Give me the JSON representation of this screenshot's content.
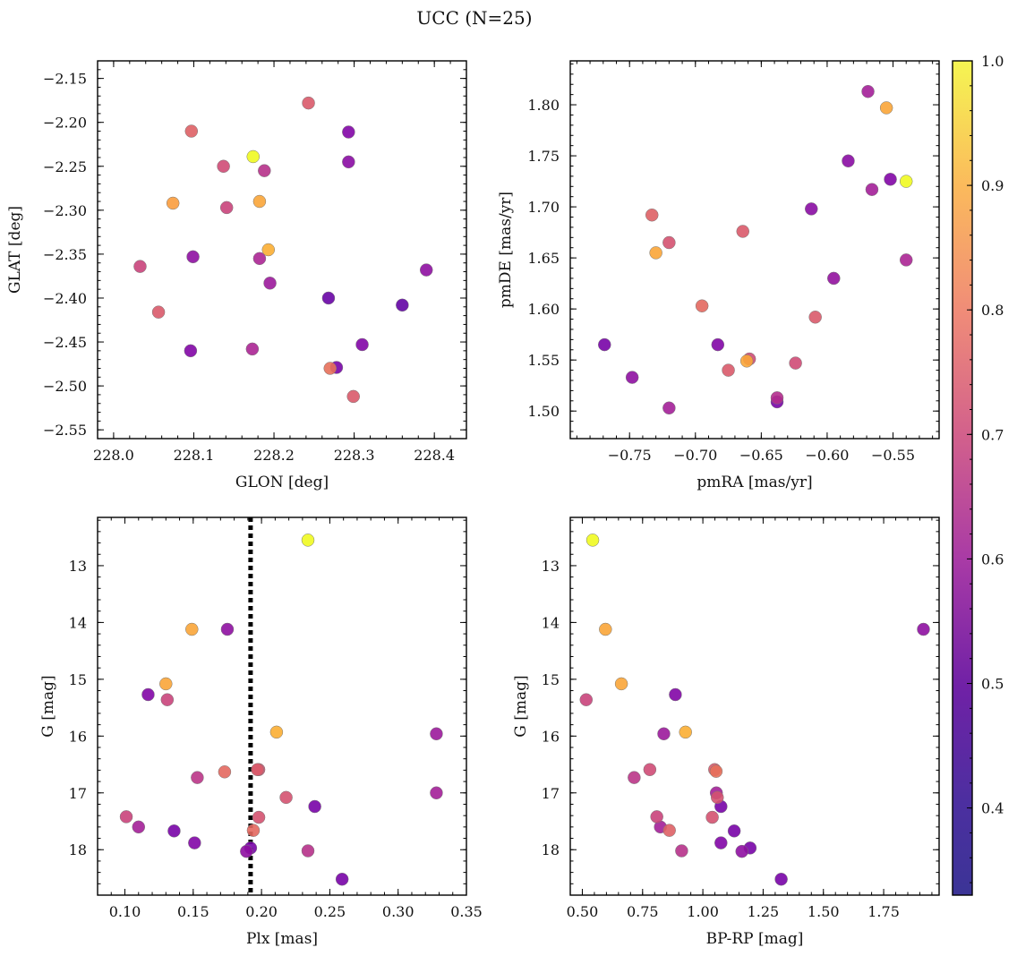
{
  "figure_title": "UCC (N=25)",
  "colors": {
    "colormap": "plasma",
    "vline": "#000000"
  },
  "colorbar": {
    "range": [
      0.33,
      1.0
    ],
    "ticks": [
      0.4,
      0.5,
      0.6,
      0.7,
      0.8,
      0.9,
      1.0
    ],
    "tick_labels": [
      "0.4",
      "0.5",
      "0.6",
      "0.7",
      "0.8",
      "0.9",
      "1.0"
    ]
  },
  "chart_data": [
    {
      "type": "scatter",
      "title": "",
      "xlabel": "GLON [deg]",
      "ylabel": "GLAT [deg]",
      "xlim": [
        227.98,
        228.44
      ],
      "ylim": [
        -2.56,
        -2.13
      ],
      "y_inverted": false,
      "xticks": [
        228.0,
        228.1,
        228.2,
        228.3,
        228.4
      ],
      "xtick_labels": [
        "228.0",
        "228.1",
        "228.2",
        "228.3",
        "228.4"
      ],
      "yticks": [
        -2.15,
        -2.2,
        -2.25,
        -2.3,
        -2.35,
        -2.4,
        -2.45,
        -2.5,
        -2.55
      ],
      "ytick_labels": [
        "−2.15",
        "−2.20",
        "−2.25",
        "−2.30",
        "−2.35",
        "−2.40",
        "−2.45",
        "−2.50",
        "−2.55"
      ],
      "grid": false,
      "points": [
        {
          "x": 228.243,
          "y": -2.178,
          "c": 0.66
        },
        {
          "x": 228.097,
          "y": -2.21,
          "c": 0.68
        },
        {
          "x": 228.293,
          "y": -2.211,
          "c": 0.42
        },
        {
          "x": 228.174,
          "y": -2.239,
          "c": 1.0
        },
        {
          "x": 228.293,
          "y": -2.245,
          "c": 0.44
        },
        {
          "x": 228.137,
          "y": -2.25,
          "c": 0.62
        },
        {
          "x": 228.188,
          "y": -2.255,
          "c": 0.55
        },
        {
          "x": 228.074,
          "y": -2.292,
          "c": 0.82
        },
        {
          "x": 228.182,
          "y": -2.29,
          "c": 0.84
        },
        {
          "x": 228.141,
          "y": -2.297,
          "c": 0.6
        },
        {
          "x": 228.193,
          "y": -2.345,
          "c": 0.86
        },
        {
          "x": 228.099,
          "y": -2.353,
          "c": 0.45
        },
        {
          "x": 228.182,
          "y": -2.355,
          "c": 0.52
        },
        {
          "x": 228.033,
          "y": -2.364,
          "c": 0.6
        },
        {
          "x": 228.39,
          "y": -2.368,
          "c": 0.45
        },
        {
          "x": 228.195,
          "y": -2.383,
          "c": 0.48
        },
        {
          "x": 228.268,
          "y": -2.4,
          "c": 0.37
        },
        {
          "x": 228.36,
          "y": -2.408,
          "c": 0.36
        },
        {
          "x": 228.056,
          "y": -2.416,
          "c": 0.66
        },
        {
          "x": 228.31,
          "y": -2.453,
          "c": 0.42
        },
        {
          "x": 228.173,
          "y": -2.458,
          "c": 0.52
        },
        {
          "x": 228.096,
          "y": -2.46,
          "c": 0.42
        },
        {
          "x": 228.278,
          "y": -2.479,
          "c": 0.4
        },
        {
          "x": 228.27,
          "y": -2.48,
          "c": 0.72
        },
        {
          "x": 228.299,
          "y": -2.512,
          "c": 0.66
        }
      ]
    },
    {
      "type": "scatter",
      "title": "",
      "xlabel": "pmRA [mas/yr]",
      "ylabel": "pmDE [mas/yr]",
      "xlim": [
        -0.795,
        -0.515
      ],
      "ylim": [
        1.473,
        1.843
      ],
      "y_inverted": false,
      "xticks": [
        -0.75,
        -0.7,
        -0.65,
        -0.6,
        -0.55
      ],
      "xtick_labels": [
        "−0.75",
        "−0.70",
        "−0.65",
        "−0.60",
        "−0.55"
      ],
      "yticks": [
        1.5,
        1.55,
        1.6,
        1.65,
        1.7,
        1.75,
        1.8
      ],
      "ytick_labels": [
        "1.50",
        "1.55",
        "1.60",
        "1.65",
        "1.70",
        "1.75",
        "1.80"
      ],
      "grid": false,
      "points": [
        {
          "x": -0.569,
          "y": 1.813,
          "c": 0.5
        },
        {
          "x": -0.555,
          "y": 1.797,
          "c": 0.84
        },
        {
          "x": -0.584,
          "y": 1.745,
          "c": 0.44
        },
        {
          "x": -0.552,
          "y": 1.727,
          "c": 0.42
        },
        {
          "x": -0.54,
          "y": 1.725,
          "c": 1.0
        },
        {
          "x": -0.566,
          "y": 1.717,
          "c": 0.5
        },
        {
          "x": -0.612,
          "y": 1.698,
          "c": 0.44
        },
        {
          "x": -0.733,
          "y": 1.692,
          "c": 0.68
        },
        {
          "x": -0.664,
          "y": 1.676,
          "c": 0.66
        },
        {
          "x": -0.72,
          "y": 1.665,
          "c": 0.64
        },
        {
          "x": -0.73,
          "y": 1.655,
          "c": 0.84
        },
        {
          "x": -0.54,
          "y": 1.648,
          "c": 0.52
        },
        {
          "x": -0.595,
          "y": 1.63,
          "c": 0.46
        },
        {
          "x": -0.695,
          "y": 1.603,
          "c": 0.7
        },
        {
          "x": -0.609,
          "y": 1.592,
          "c": 0.66
        },
        {
          "x": -0.769,
          "y": 1.565,
          "c": 0.4
        },
        {
          "x": -0.683,
          "y": 1.565,
          "c": 0.42
        },
        {
          "x": -0.659,
          "y": 1.551,
          "c": 0.62
        },
        {
          "x": -0.661,
          "y": 1.549,
          "c": 0.84
        },
        {
          "x": -0.624,
          "y": 1.547,
          "c": 0.62
        },
        {
          "x": -0.675,
          "y": 1.54,
          "c": 0.66
        },
        {
          "x": -0.748,
          "y": 1.533,
          "c": 0.45
        },
        {
          "x": -0.638,
          "y": 1.513,
          "c": 0.54
        },
        {
          "x": -0.638,
          "y": 1.509,
          "c": 0.4
        },
        {
          "x": -0.72,
          "y": 1.503,
          "c": 0.5
        }
      ]
    },
    {
      "type": "scatter",
      "title": "",
      "xlabel": "Plx [mas]",
      "ylabel": "G [mag]",
      "xlim": [
        0.08,
        0.35
      ],
      "ylim": [
        18.8,
        12.15
      ],
      "y_inverted": true,
      "xticks": [
        0.1,
        0.15,
        0.2,
        0.25,
        0.3,
        0.35
      ],
      "xtick_labels": [
        "0.10",
        "0.15",
        "0.20",
        "0.25",
        "0.30",
        "0.35"
      ],
      "yticks": [
        13,
        14,
        15,
        16,
        17,
        18
      ],
      "ytick_labels": [
        "13",
        "14",
        "15",
        "16",
        "17",
        "18"
      ],
      "grid": false,
      "vline": {
        "x": 0.192,
        "style": "dotted"
      },
      "points": [
        {
          "x": 0.234,
          "y": 12.55,
          "c": 1.0
        },
        {
          "x": 0.149,
          "y": 14.12,
          "c": 0.84
        },
        {
          "x": 0.175,
          "y": 14.12,
          "c": 0.45
        },
        {
          "x": 0.117,
          "y": 15.27,
          "c": 0.42
        },
        {
          "x": 0.13,
          "y": 15.08,
          "c": 0.84
        },
        {
          "x": 0.131,
          "y": 15.36,
          "c": 0.6
        },
        {
          "x": 0.211,
          "y": 15.93,
          "c": 0.86
        },
        {
          "x": 0.328,
          "y": 15.96,
          "c": 0.48
        },
        {
          "x": 0.197,
          "y": 16.59,
          "c": 0.66
        },
        {
          "x": 0.198,
          "y": 16.59,
          "c": 0.64
        },
        {
          "x": 0.173,
          "y": 16.63,
          "c": 0.7
        },
        {
          "x": 0.153,
          "y": 16.73,
          "c": 0.56
        },
        {
          "x": 0.328,
          "y": 17.0,
          "c": 0.5
        },
        {
          "x": 0.218,
          "y": 17.08,
          "c": 0.64
        },
        {
          "x": 0.239,
          "y": 17.24,
          "c": 0.4
        },
        {
          "x": 0.101,
          "y": 17.42,
          "c": 0.6
        },
        {
          "x": 0.198,
          "y": 17.43,
          "c": 0.64
        },
        {
          "x": 0.11,
          "y": 17.6,
          "c": 0.5
        },
        {
          "x": 0.194,
          "y": 17.66,
          "c": 0.7
        },
        {
          "x": 0.136,
          "y": 17.67,
          "c": 0.4
        },
        {
          "x": 0.151,
          "y": 17.88,
          "c": 0.42
        },
        {
          "x": 0.192,
          "y": 17.97,
          "c": 0.4
        },
        {
          "x": 0.189,
          "y": 18.03,
          "c": 0.45
        },
        {
          "x": 0.234,
          "y": 18.02,
          "c": 0.55
        },
        {
          "x": 0.259,
          "y": 18.52,
          "c": 0.4
        }
      ]
    },
    {
      "type": "scatter",
      "title": "",
      "xlabel": "BP-RP [mag]",
      "ylabel": "G [mag]",
      "xlim": [
        0.45,
        1.98
      ],
      "ylim": [
        18.8,
        12.15
      ],
      "y_inverted": true,
      "xticks": [
        0.5,
        0.75,
        1.0,
        1.25,
        1.5,
        1.75
      ],
      "xtick_labels": [
        "0.50",
        "0.75",
        "1.00",
        "1.25",
        "1.50",
        "1.75"
      ],
      "yticks": [
        13,
        14,
        15,
        16,
        17,
        18
      ],
      "ytick_labels": [
        "13",
        "14",
        "15",
        "16",
        "17",
        "18"
      ],
      "grid": false,
      "points": [
        {
          "x": 0.543,
          "y": 12.55,
          "c": 1.0
        },
        {
          "x": 0.596,
          "y": 14.12,
          "c": 0.84
        },
        {
          "x": 1.915,
          "y": 14.12,
          "c": 0.45
        },
        {
          "x": 0.886,
          "y": 15.27,
          "c": 0.42
        },
        {
          "x": 0.662,
          "y": 15.08,
          "c": 0.84
        },
        {
          "x": 0.516,
          "y": 15.36,
          "c": 0.6
        },
        {
          "x": 0.928,
          "y": 15.93,
          "c": 0.86
        },
        {
          "x": 0.838,
          "y": 15.96,
          "c": 0.48
        },
        {
          "x": 1.049,
          "y": 16.59,
          "c": 0.66
        },
        {
          "x": 1.055,
          "y": 16.62,
          "c": 0.72
        },
        {
          "x": 0.78,
          "y": 16.59,
          "c": 0.62
        },
        {
          "x": 0.715,
          "y": 16.73,
          "c": 0.56
        },
        {
          "x": 1.056,
          "y": 17.0,
          "c": 0.5
        },
        {
          "x": 1.06,
          "y": 17.08,
          "c": 0.64
        },
        {
          "x": 1.075,
          "y": 17.24,
          "c": 0.4
        },
        {
          "x": 0.809,
          "y": 17.42,
          "c": 0.6
        },
        {
          "x": 1.039,
          "y": 17.43,
          "c": 0.64
        },
        {
          "x": 0.824,
          "y": 17.6,
          "c": 0.5
        },
        {
          "x": 0.861,
          "y": 17.66,
          "c": 0.68
        },
        {
          "x": 1.13,
          "y": 17.67,
          "c": 0.4
        },
        {
          "x": 1.075,
          "y": 17.88,
          "c": 0.42
        },
        {
          "x": 1.196,
          "y": 17.97,
          "c": 0.4
        },
        {
          "x": 1.162,
          "y": 18.03,
          "c": 0.45
        },
        {
          "x": 0.912,
          "y": 18.02,
          "c": 0.55
        },
        {
          "x": 1.325,
          "y": 18.52,
          "c": 0.4
        }
      ]
    }
  ]
}
